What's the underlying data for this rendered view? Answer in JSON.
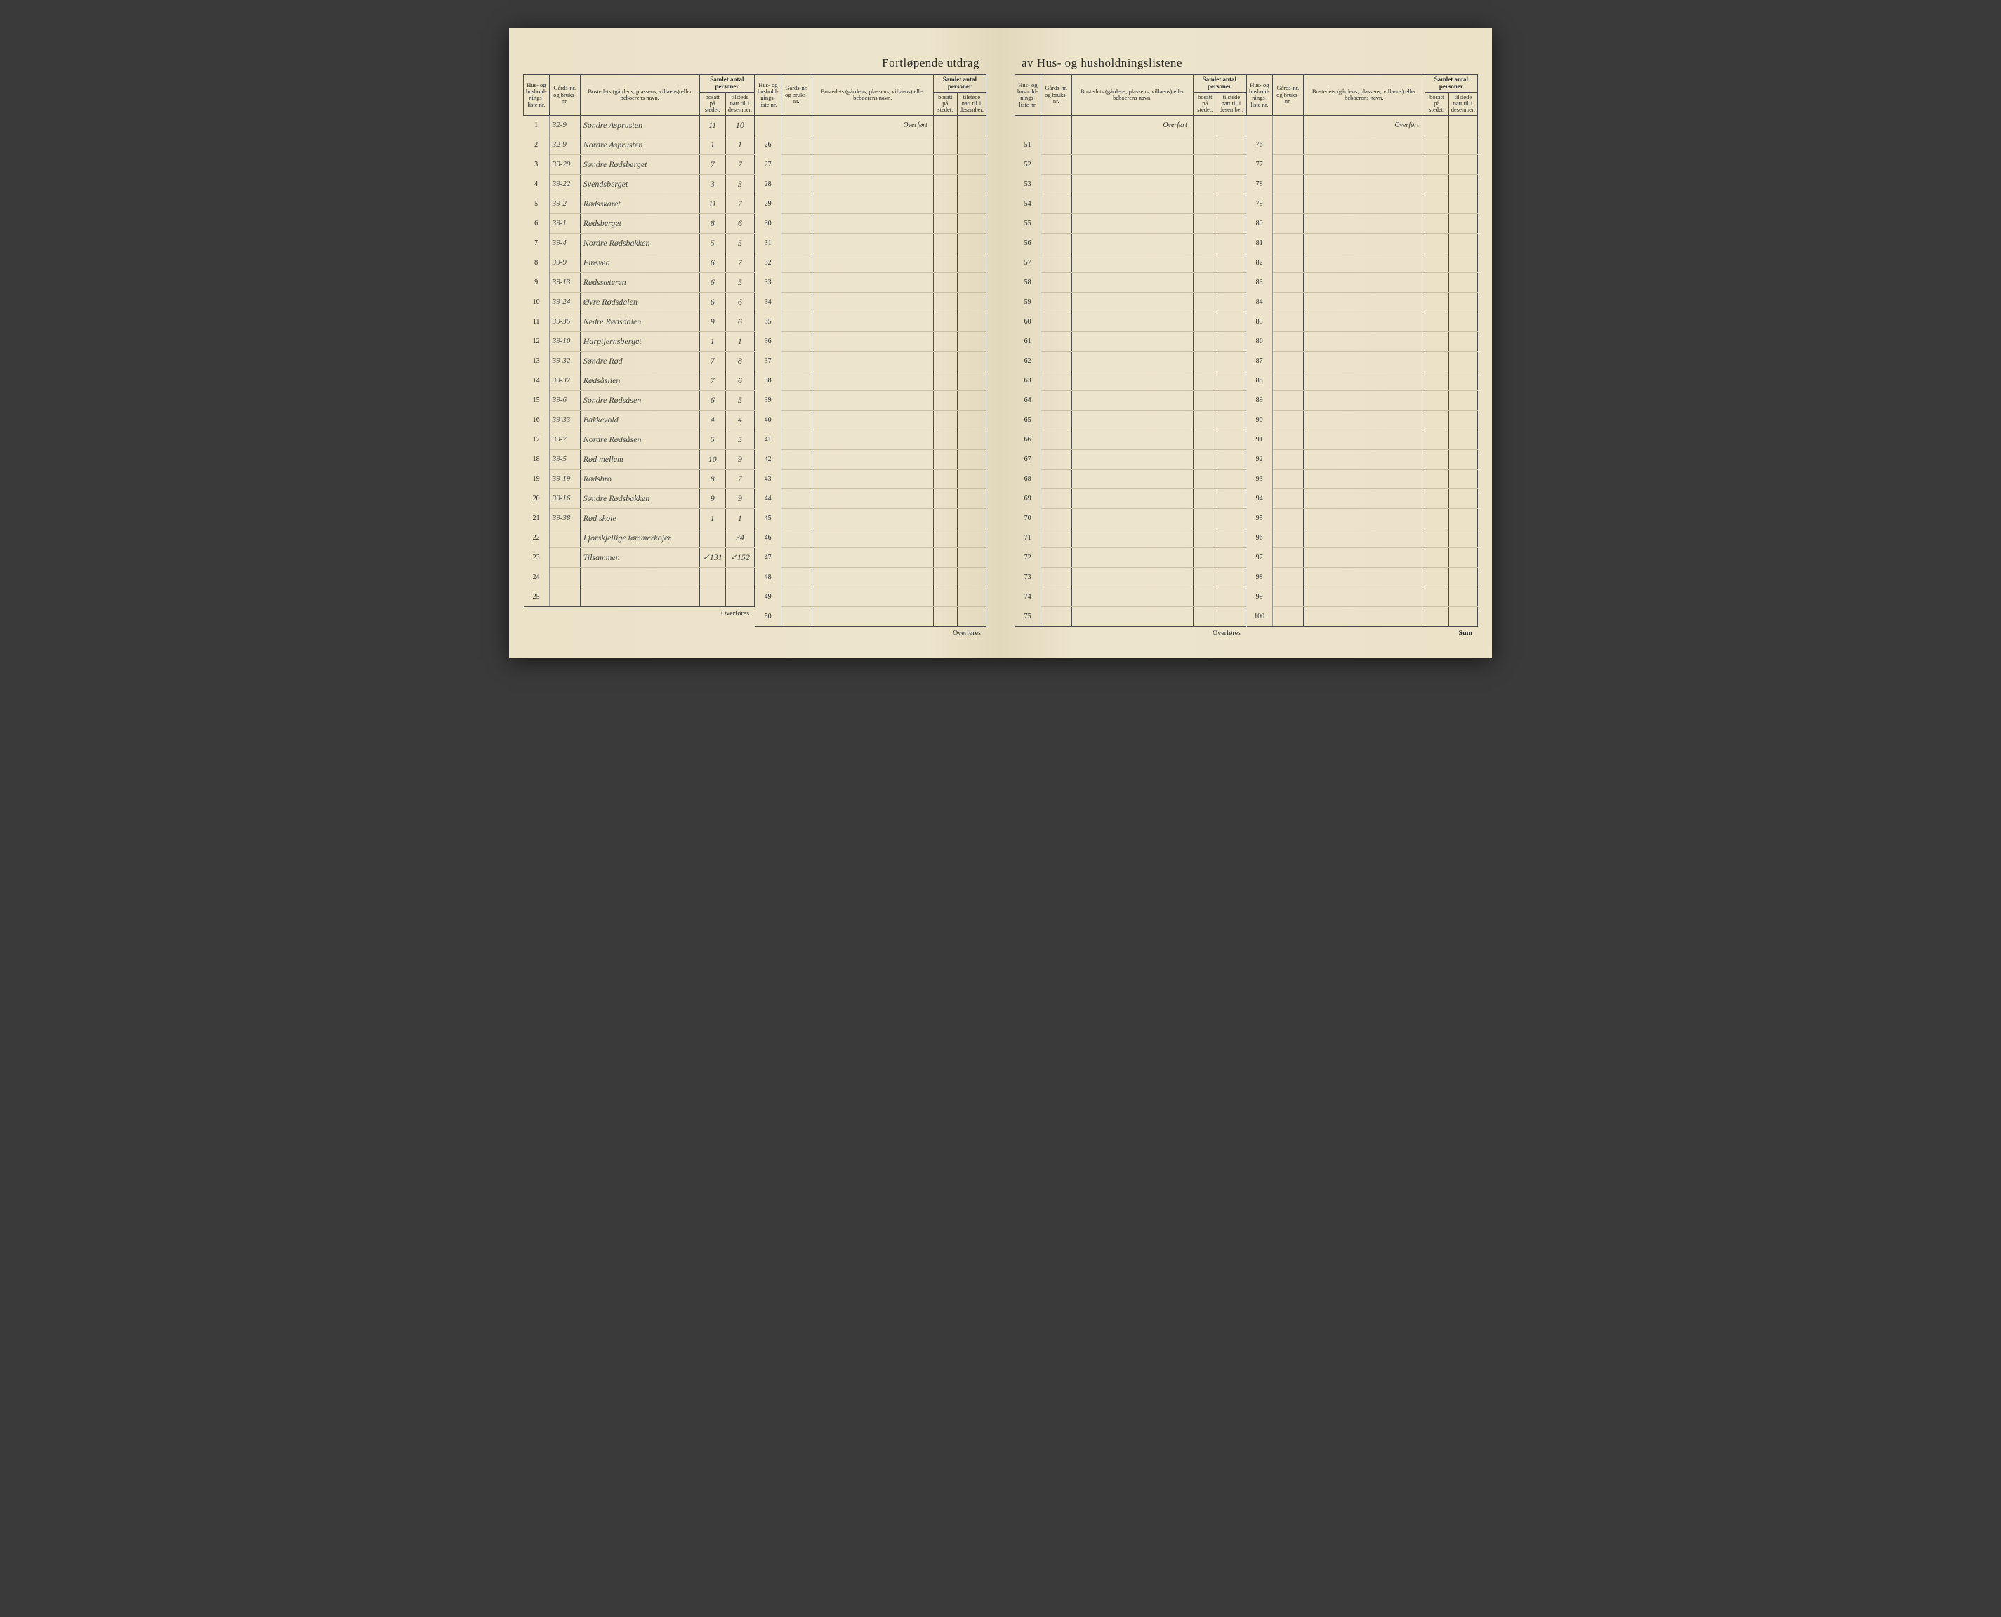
{
  "title_left": "Fortløpende utdrag",
  "title_right": "av Hus- og husholdningslistene",
  "headers": {
    "hus_nr": "Hus- og hushold-nings-liste nr.",
    "gard_nr": "Gårds-nr. og bruks-nr.",
    "bosteder": "Bostedets (gårdens, plassens, villaens) eller beboerens navn.",
    "samlet": "Samlet antal personer",
    "bosatt": "bosatt på stedet.",
    "tilstede": "tilstede natt til 1 desember."
  },
  "overfort": "Overført",
  "overfores": "Overføres",
  "sum": "Sum",
  "section1_rows": [
    {
      "n": "1",
      "g": "32-9",
      "name": "Søndre Asprusten",
      "b": "11",
      "t": "10"
    },
    {
      "n": "2",
      "g": "32-9",
      "name": "Nordre Asprusten",
      "b": "1",
      "t": "1"
    },
    {
      "n": "3",
      "g": "39-29",
      "name": "Søndre Rødsberget",
      "b": "7",
      "t": "7"
    },
    {
      "n": "4",
      "g": "39-22",
      "name": "Svendsberget",
      "b": "3",
      "t": "3"
    },
    {
      "n": "5",
      "g": "39-2",
      "name": "Rødsskaret",
      "b": "11",
      "t": "7"
    },
    {
      "n": "6",
      "g": "39-1",
      "name": "Rødsberget",
      "b": "8",
      "t": "6"
    },
    {
      "n": "7",
      "g": "39-4",
      "name": "Nordre Rødsbakken",
      "b": "5",
      "t": "5"
    },
    {
      "n": "8",
      "g": "39-9",
      "name": "Finsvea",
      "b": "6",
      "t": "7"
    },
    {
      "n": "9",
      "g": "39-13",
      "name": "Rødssæteren",
      "b": "6",
      "t": "5"
    },
    {
      "n": "10",
      "g": "39-24",
      "name": "Øvre Rødsdalen",
      "b": "6",
      "t": "6"
    },
    {
      "n": "11",
      "g": "39-35",
      "name": "Nedre Rødsdalen",
      "b": "9",
      "t": "6"
    },
    {
      "n": "12",
      "g": "39-10",
      "name": "Harptjernsberget",
      "b": "1",
      "t": "1"
    },
    {
      "n": "13",
      "g": "39-32",
      "name": "Søndre Rød",
      "b": "7",
      "t": "8"
    },
    {
      "n": "14",
      "g": "39-37",
      "name": "Rødsåslien",
      "b": "7",
      "t": "6"
    },
    {
      "n": "15",
      "g": "39-6",
      "name": "Søndre Rødsåsen",
      "b": "6",
      "t": "5"
    },
    {
      "n": "16",
      "g": "39-33",
      "name": "Bakkevold",
      "b": "4",
      "t": "4"
    },
    {
      "n": "17",
      "g": "39-7",
      "name": "Nordre Rødsåsen",
      "b": "5",
      "t": "5"
    },
    {
      "n": "18",
      "g": "39-5",
      "name": "Rød mellem",
      "b": "10",
      "t": "9"
    },
    {
      "n": "19",
      "g": "39-19",
      "name": "Rødsbro",
      "b": "8",
      "t": "7"
    },
    {
      "n": "20",
      "g": "39-16",
      "name": "Søndre Rødsbakken",
      "b": "9",
      "t": "9"
    },
    {
      "n": "21",
      "g": "39-38",
      "name": "Rød skole",
      "b": "1",
      "t": "1"
    },
    {
      "n": "22",
      "g": "",
      "name": "I forskjellige tømmerkojer",
      "b": "",
      "t": "34"
    },
    {
      "n": "23",
      "g": "",
      "name": "Tilsammen",
      "b": "✓131",
      "t": "✓152"
    },
    {
      "n": "24",
      "g": "",
      "name": "",
      "b": "",
      "t": ""
    },
    {
      "n": "25",
      "g": "",
      "name": "",
      "b": "",
      "t": ""
    }
  ],
  "section2_start": 26,
  "section3_start": 51,
  "section4_start": 76,
  "colors": {
    "paper": "#ede4cc",
    "ink": "#2a2a2a",
    "handwriting": "#454545",
    "rule_dark": "#4a4a4a",
    "rule_light": "#c8bfa5"
  }
}
